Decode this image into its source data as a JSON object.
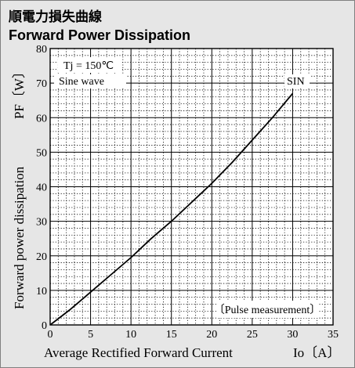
{
  "title_jp": "順電力損失曲線",
  "title_en": "Forward Power Dissipation",
  "chart_data": {
    "type": "line",
    "xlabel": "Average Rectified Forward Current",
    "xunit": "Io〔A〕",
    "ylabel": "Forward power dissipation",
    "yunit": "PF〔W〕",
    "xlim": [
      0,
      35
    ],
    "ylim": [
      0,
      80
    ],
    "xticks": [
      "0",
      "5",
      "10",
      "15",
      "20",
      "25",
      "30",
      "35"
    ],
    "yticks": [
      "0",
      "10",
      "20",
      "30",
      "40",
      "50",
      "60",
      "70",
      "80"
    ],
    "grid": true,
    "annotations": {
      "condition_line1": "Tj = 150℃",
      "condition_line2": "Sine wave",
      "series_label": "SIN",
      "measurement_note": "〔Pulse measurement〕"
    },
    "series": [
      {
        "name": "SIN",
        "x": [
          0,
          2.5,
          5,
          7.5,
          10,
          12.5,
          15,
          17.5,
          20,
          22.5,
          25,
          27.5,
          30
        ],
        "y": [
          0,
          4.5,
          9.5,
          14.5,
          19.5,
          25,
          30,
          35.5,
          41,
          47,
          53.5,
          60,
          67
        ]
      }
    ]
  }
}
